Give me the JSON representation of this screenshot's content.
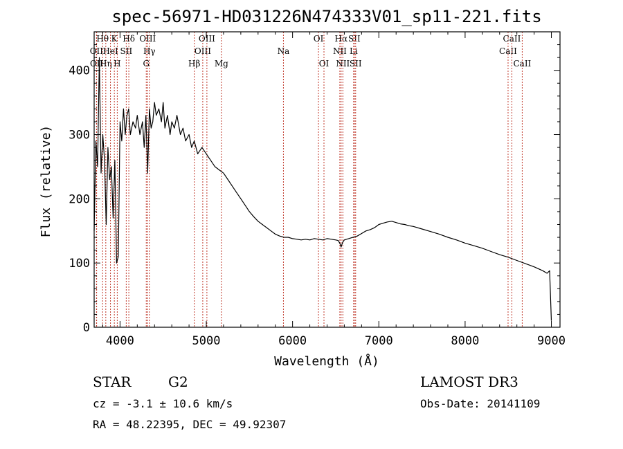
{
  "chart_data": {
    "type": "line",
    "title": "spec-56971-HD031226N474333V01_sp11-221.fits",
    "xlabel": "Wavelength (Å)",
    "ylabel": "Flux (relative)",
    "xlim": [
      3700,
      9100
    ],
    "ylim": [
      0,
      460
    ],
    "xticks": [
      4000,
      5000,
      6000,
      7000,
      8000,
      9000
    ],
    "yticks": [
      0,
      100,
      200,
      300,
      400
    ],
    "grid": false,
    "series": [
      {
        "x": [
          3700,
          3720,
          3740,
          3760,
          3780,
          3800,
          3820,
          3840,
          3860,
          3880,
          3900,
          3920,
          3940,
          3960,
          3980,
          4000,
          4020,
          4040,
          4060,
          4080,
          4100,
          4120,
          4150,
          4180,
          4200,
          4230,
          4260,
          4280,
          4300,
          4320,
          4340,
          4360,
          4380,
          4400,
          4420,
          4450,
          4480,
          4500,
          4520,
          4550,
          4580,
          4600,
          4630,
          4660,
          4700,
          4730,
          4760,
          4800,
          4830,
          4860,
          4900,
          4950,
          5000,
          5050,
          5100,
          5150,
          5200,
          5250,
          5300,
          5350,
          5400,
          5450,
          5500,
          5550,
          5600,
          5650,
          5700,
          5750,
          5800,
          5850,
          5900,
          5950,
          6000,
          6050,
          6100,
          6150,
          6200,
          6250,
          6300,
          6350,
          6400,
          6450,
          6500,
          6530,
          6550,
          6563,
          6580,
          6600,
          6650,
          6700,
          6750,
          6800,
          6850,
          6900,
          6950,
          7000,
          7050,
          7100,
          7150,
          7200,
          7250,
          7300,
          7350,
          7400,
          7500,
          7600,
          7700,
          7800,
          7900,
          8000,
          8100,
          8200,
          8300,
          8400,
          8500,
          8600,
          8700,
          8800,
          8900,
          8950,
          8980,
          9000
        ],
        "y": [
          150,
          290,
          250,
          420,
          240,
          300,
          260,
          160,
          280,
          230,
          250,
          170,
          260,
          100,
          110,
          320,
          290,
          340,
          300,
          330,
          340,
          300,
          320,
          310,
          330,
          300,
          320,
          280,
          330,
          240,
          340,
          310,
          320,
          350,
          330,
          340,
          320,
          350,
          310,
          330,
          300,
          320,
          310,
          330,
          300,
          310,
          290,
          300,
          280,
          290,
          270,
          280,
          270,
          260,
          250,
          245,
          240,
          230,
          220,
          210,
          200,
          190,
          180,
          172,
          165,
          160,
          155,
          150,
          145,
          142,
          140,
          140,
          138,
          137,
          136,
          137,
          136,
          138,
          137,
          136,
          138,
          137,
          136,
          135,
          130,
          125,
          132,
          136,
          138,
          140,
          142,
          146,
          150,
          152,
          155,
          160,
          162,
          164,
          165,
          163,
          161,
          160,
          158,
          157,
          153,
          149,
          145,
          140,
          136,
          131,
          127,
          123,
          118,
          113,
          109,
          104,
          99,
          94,
          88,
          84,
          88,
          10
        ]
      }
    ],
    "lines": [
      {
        "label": "Hθ",
        "wl": 3798,
        "row": 0
      },
      {
        "label": "OII",
        "wl": 3727,
        "row": 1
      },
      {
        "label": "OII",
        "wl": 3729,
        "row": 2
      },
      {
        "label": "Hη",
        "wl": 3835,
        "row": 2
      },
      {
        "label": "HeI",
        "wl": 3889,
        "row": 1
      },
      {
        "label": "K",
        "wl": 3934,
        "row": 0
      },
      {
        "label": "H",
        "wl": 3968,
        "row": 2
      },
      {
        "label": "SII",
        "wl": 4072,
        "row": 1
      },
      {
        "label": "Hδ",
        "wl": 4102,
        "row": 0
      },
      {
        "label": "OIII",
        "wl": 4320,
        "row": 0
      },
      {
        "label": "Hγ",
        "wl": 4340,
        "row": 1
      },
      {
        "label": "G",
        "wl": 4304,
        "row": 2
      },
      {
        "label": "Hβ",
        "wl": 4861,
        "row": 2
      },
      {
        "label": "OIII",
        "wl": 4959,
        "row": 1
      },
      {
        "label": "OIII",
        "wl": 5007,
        "row": 0
      },
      {
        "label": "Mg",
        "wl": 5175,
        "row": 2
      },
      {
        "label": "Na",
        "wl": 5894,
        "row": 1
      },
      {
        "label": "OI",
        "wl": 6300,
        "row": 0
      },
      {
        "label": "OI",
        "wl": 6364,
        "row": 2
      },
      {
        "label": "NII",
        "wl": 6548,
        "row": 1
      },
      {
        "label": "Hα",
        "wl": 6563,
        "row": 0
      },
      {
        "label": "NII",
        "wl": 6583,
        "row": 2
      },
      {
        "label": "SII",
        "wl": 6716,
        "row": 0
      },
      {
        "label": "Li",
        "wl": 6708,
        "row": 1
      },
      {
        "label": "SII",
        "wl": 6731,
        "row": 2
      },
      {
        "label": "CaII",
        "wl": 8498,
        "row": 1
      },
      {
        "label": "CaII",
        "wl": 8542,
        "row": 0
      },
      {
        "label": "CaII",
        "wl": 8662,
        "row": 2
      }
    ]
  },
  "info": {
    "object_class": "STAR",
    "subclass": "G2",
    "survey": "LAMOST DR3",
    "redshift": "cz = -3.1 ± 10.6 km/s",
    "obs_date": "Obs-Date: 20141109",
    "coords": "RA =  48.22395, DEC =  49.92307"
  },
  "colors": {
    "line_marker": "#c0392b",
    "spectrum": "#000000"
  }
}
